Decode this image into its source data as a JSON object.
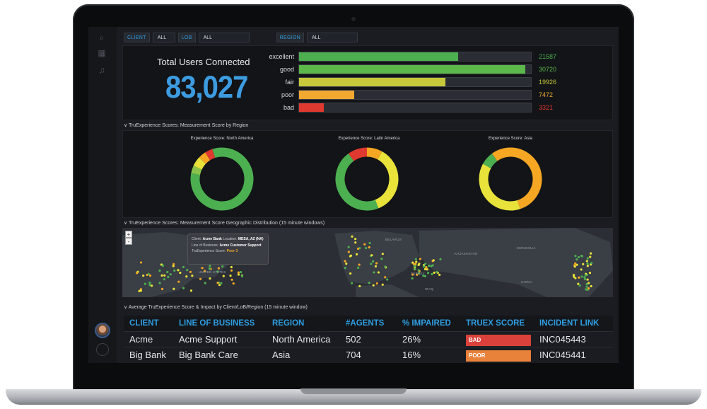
{
  "filters": [
    {
      "label": "CLIENT",
      "value": "ALL"
    },
    {
      "label": "LOB",
      "value": "ALL"
    },
    {
      "label": "REGION",
      "value": "ALL"
    }
  ],
  "users": {
    "title": "Total Users Connected",
    "count": "83,027"
  },
  "distribution": [
    {
      "label": "excellent",
      "value": 21587,
      "display": "21587",
      "color": "#4caf50"
    },
    {
      "label": "good",
      "value": 30720,
      "display": "30720",
      "color": "#5cb84a"
    },
    {
      "label": "fair",
      "value": 19926,
      "display": "19926",
      "color": "#c7c93a"
    },
    {
      "label": "poor",
      "value": 7472,
      "display": "7472",
      "color": "#f0a830"
    },
    {
      "label": "bad",
      "value": 3321,
      "display": "3321",
      "color": "#e0392f"
    }
  ],
  "distribution_max": 31500,
  "sections": {
    "region": "TruExperience Scores: Measurement Score by Region",
    "geo": "TruExperience Scores: Measurement Score Geographic Distribution (15 minute windows)",
    "impact": "Average TruExperience Score & Impact by Client/LoB/Region (15 minute window)"
  },
  "donuts": [
    {
      "title": "Experience Score: North America",
      "segments": [
        {
          "value": 78,
          "color": "#4caf50"
        },
        {
          "value": 4,
          "color": "#8bc34a"
        },
        {
          "value": 5,
          "color": "#e8e23a"
        },
        {
          "value": 4,
          "color": "#f5a623"
        },
        {
          "value": 4,
          "color": "#e0392f"
        },
        {
          "value": 5,
          "color": "#4caf50"
        }
      ]
    },
    {
      "title": "Experience Score: Latin America",
      "segments": [
        {
          "value": 8,
          "color": "#f5a623"
        },
        {
          "value": 36,
          "color": "#e8e23a"
        },
        {
          "value": 46,
          "color": "#4caf50"
        },
        {
          "value": 10,
          "color": "#e0392f"
        }
      ]
    },
    {
      "title": "Experience Score: Asia",
      "segments": [
        {
          "value": 45,
          "color": "#f5a623"
        },
        {
          "value": 38,
          "color": "#e8e23a"
        },
        {
          "value": 7,
          "color": "#4caf50"
        },
        {
          "value": 10,
          "color": "#f5a623"
        }
      ]
    }
  ],
  "map": {
    "zoom_in": "+",
    "zoom_out": "-",
    "tooltip": {
      "client_label": "Client:",
      "client": "Acme Bank",
      "location_label": "Location:",
      "location": "MESA, AZ (NA)",
      "lob_label": "Line of Business:",
      "lob": "Acme Customer Support",
      "score_label": "TruExperience Score:",
      "score": "Poor 3"
    },
    "labels": [
      {
        "name": "UNITED STATES"
      },
      {
        "name": "MONGOLIA"
      },
      {
        "name": "KAZAKHSTAN"
      },
      {
        "name": "TURKEY"
      },
      {
        "name": "IRAQ"
      },
      {
        "name": "CHINA"
      },
      {
        "name": "BELARUS"
      }
    ]
  },
  "table": {
    "headers": [
      "CLIENT",
      "LINE OF BUSINESS",
      "REGION",
      "#AGENTS",
      "% IMPAIRED",
      "TRUEX SCORE",
      "INCIDENT LINK"
    ],
    "rows": [
      {
        "client": "Acme",
        "lob": "Acme Support",
        "region": "North America",
        "agents": "502",
        "impaired": "26%",
        "score": "BAD",
        "score_color": "#d9413a",
        "incident": "INC045443"
      },
      {
        "client": "Big Bank",
        "lob": "Big Bank Care",
        "region": "Asia",
        "agents": "704",
        "impaired": "16%",
        "score": "POOR",
        "score_color": "#e8813a",
        "incident": "INC045441"
      }
    ]
  },
  "colors": {
    "accent": "#2f9de0",
    "background": "#1a1c21"
  }
}
